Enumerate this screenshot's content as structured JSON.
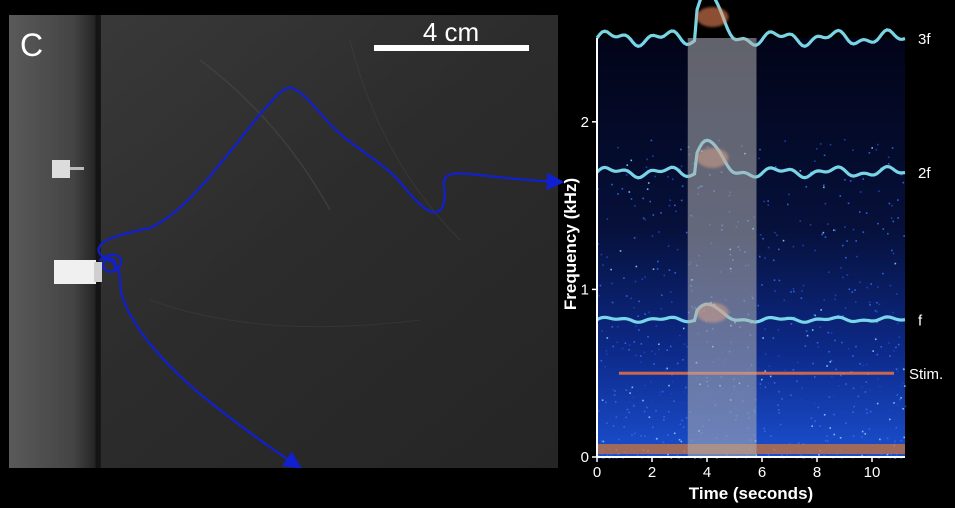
{
  "panel_label": "C",
  "scale_bar_label": "4 cm",
  "colors": {
    "trajectory": "#1020d0",
    "axis": "#ffffff",
    "stimulus_band": "#d66a4a",
    "harmonic": "#7fe0f0",
    "background_noise": "#1a3fb0",
    "highlight": "#a8a8a8"
  },
  "chart_data": {
    "type": "heatmap",
    "subtype": "spectrogram",
    "xlabel": "Time (seconds)",
    "ylabel": "Frequency (kHz)",
    "xlim": [
      0,
      11.2
    ],
    "ylim": [
      0,
      2.5
    ],
    "x_ticks": [
      0,
      2,
      4,
      6,
      8,
      10
    ],
    "y_ticks": [
      0,
      1,
      2
    ],
    "highlight_window": [
      3.3,
      5.8
    ],
    "bands": [
      {
        "label": "3f",
        "freq": 2.5
      },
      {
        "label": "2f",
        "freq": 1.7
      },
      {
        "label": "f",
        "freq": 0.82
      },
      {
        "label": "Stim.",
        "freq": 0.5,
        "t_start": 0.8,
        "t_end": 10.8
      }
    ]
  }
}
